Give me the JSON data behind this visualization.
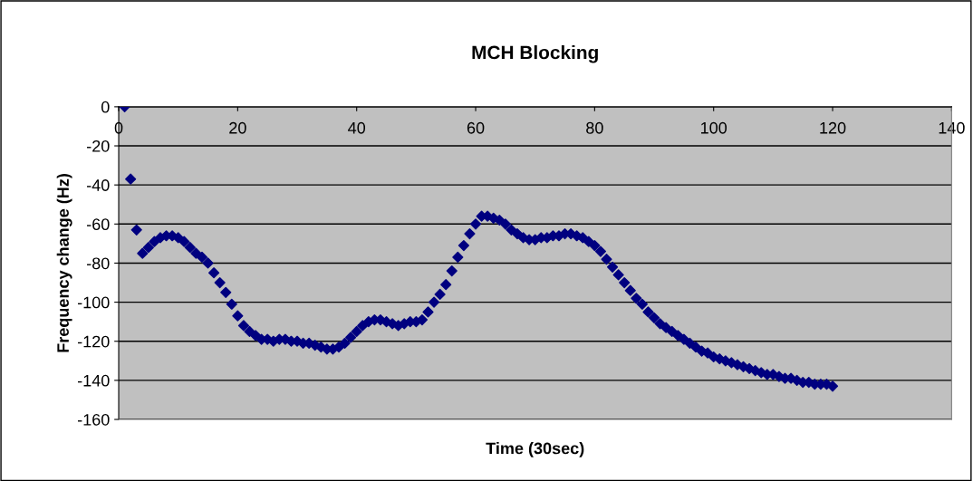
{
  "chart_data": {
    "type": "scatter",
    "title": "MCH Blocking",
    "xlabel": "Time (30sec)",
    "ylabel": "Frequency change (Hz)",
    "x": [
      1,
      2,
      3,
      4,
      5,
      6,
      7,
      8,
      9,
      10,
      11,
      12,
      13,
      14,
      15,
      16,
      17,
      18,
      19,
      20,
      21,
      22,
      23,
      24,
      25,
      26,
      27,
      28,
      29,
      30,
      31,
      32,
      33,
      34,
      35,
      36,
      37,
      38,
      39,
      40,
      41,
      42,
      43,
      44,
      45,
      46,
      47,
      48,
      49,
      50,
      51,
      52,
      53,
      54,
      55,
      56,
      57,
      58,
      59,
      60,
      61,
      62,
      63,
      64,
      65,
      66,
      67,
      68,
      69,
      70,
      71,
      72,
      73,
      74,
      75,
      76,
      77,
      78,
      79,
      80,
      81,
      82,
      83,
      84,
      85,
      86,
      87,
      88,
      89,
      90,
      91,
      92,
      93,
      94,
      95,
      96,
      97,
      98,
      99,
      100,
      101,
      102,
      103,
      104,
      105,
      106,
      107,
      108,
      109,
      110,
      111,
      112,
      113,
      114,
      115,
      116,
      117,
      118,
      119,
      120
    ],
    "series": [
      {
        "color": "#000080",
        "values": [
          0,
          -37,
          -63,
          -75,
          -72,
          -69,
          -67,
          -66,
          -66,
          -67,
          -69,
          -72,
          -75,
          -77,
          -80,
          -85,
          -90,
          -95,
          -101,
          -107,
          -112,
          -115,
          -117,
          -119,
          -119,
          -120,
          -119,
          -119,
          -120,
          -120,
          -121,
          -121,
          -122,
          -123,
          -124,
          -124,
          -123,
          -121,
          -118,
          -115,
          -112,
          -110,
          -109,
          -109,
          -110,
          -111,
          -112,
          -111,
          -110,
          -110,
          -109,
          -105,
          -100,
          -96,
          -91,
          -84,
          -77,
          -71,
          -65,
          -60,
          -56,
          -56,
          -57,
          -58,
          -60,
          -63,
          -65,
          -67,
          -68,
          -68,
          -67,
          -67,
          -66,
          -66,
          -65,
          -65,
          -66,
          -67,
          -69,
          -71,
          -74,
          -78,
          -82,
          -86,
          -90,
          -94,
          -98,
          -101,
          -105,
          -108,
          -111,
          -113,
          -115,
          -117,
          -119,
          -121,
          -123,
          -125,
          -126,
          -128,
          -129,
          -130,
          -131,
          -132,
          -133,
          -134,
          -135,
          -136,
          -137,
          -137,
          -138,
          -139,
          -139,
          -140,
          -141,
          -141,
          -142,
          -142,
          -142,
          -143
        ]
      }
    ],
    "xlim": [
      0,
      140
    ],
    "xticks": [
      0,
      20,
      40,
      60,
      80,
      100,
      120,
      140
    ],
    "ylim": [
      -160,
      0
    ],
    "yticks": [
      -160,
      -140,
      -120,
      -100,
      -80,
      -60,
      -40,
      -20,
      0
    ],
    "grid": "y",
    "marker": "diamond",
    "legend": false
  }
}
